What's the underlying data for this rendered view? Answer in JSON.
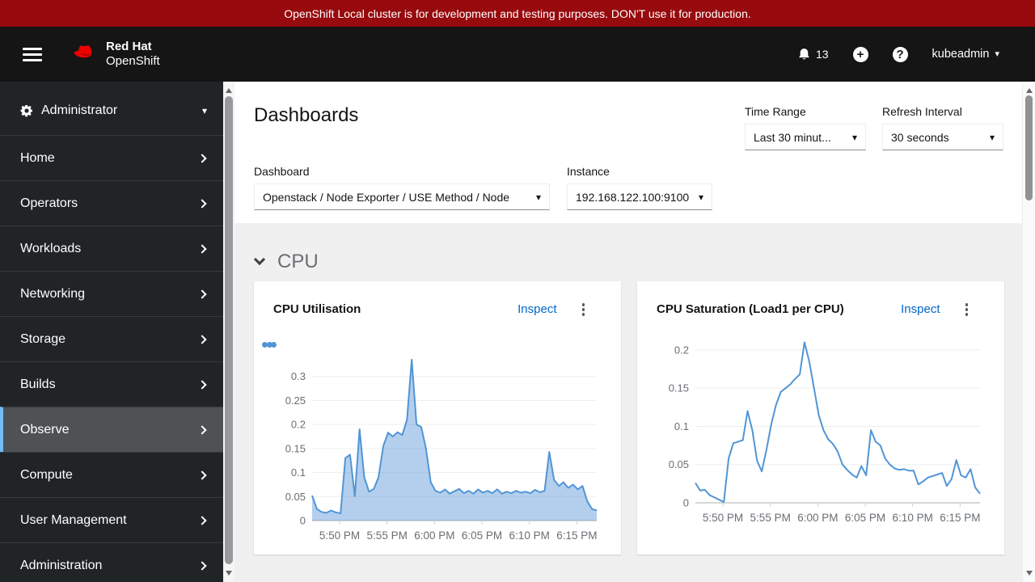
{
  "banner": {
    "text": "OpenShift Local cluster is for development and testing purposes. DON'T use it for production."
  },
  "header": {
    "brand_line1": "Red Hat",
    "brand_line2": "OpenShift",
    "notification_count": "13",
    "username": "kubeadmin"
  },
  "icons": {
    "caret_down": "▾",
    "help": "?",
    "plus": "+"
  },
  "sidebar": {
    "perspective": "Administrator",
    "items": [
      {
        "label": "Home"
      },
      {
        "label": "Operators"
      },
      {
        "label": "Workloads"
      },
      {
        "label": "Networking"
      },
      {
        "label": "Storage"
      },
      {
        "label": "Builds"
      },
      {
        "label": "Observe",
        "selected": true
      },
      {
        "label": "Compute"
      },
      {
        "label": "User Management"
      },
      {
        "label": "Administration"
      }
    ]
  },
  "page": {
    "title": "Dashboards",
    "time_range_label": "Time Range",
    "time_range_value": "Last 30 minut...",
    "refresh_label": "Refresh Interval",
    "refresh_value": "30 seconds",
    "dashboard_label": "Dashboard",
    "dashboard_value": "Openstack / Node Exporter / USE Method / Node",
    "instance_label": "Instance",
    "instance_value": "192.168.122.100:9100",
    "section_title": "CPU"
  },
  "cards": [
    {
      "title": "CPU Utilisation",
      "action": "Inspect"
    },
    {
      "title": "CPU Saturation (Load1 per CPU)",
      "action": "Inspect"
    }
  ],
  "colors": {
    "banner_bg": "#970a0d",
    "masthead_bg": "#151515",
    "sidebar_bg": "#212427",
    "sidebar_selected_bg": "#4f5255",
    "sidebar_active_border": "#73bcf7",
    "link": "#0066cc",
    "chart_line": "#5195d6",
    "content_bg": "#f0f0f0"
  },
  "chart_data": [
    {
      "type": "area",
      "title": "CPU Utilisation",
      "x_interval_min": 0.5,
      "x_range_min": 30,
      "x_ticks": [
        {
          "label": "5:50 PM",
          "t": 2.9
        },
        {
          "label": "5:55 PM",
          "t": 7.9
        },
        {
          "label": "6:00 PM",
          "t": 12.9
        },
        {
          "label": "6:05 PM",
          "t": 17.9
        },
        {
          "label": "6:10 PM",
          "t": 22.9
        },
        {
          "label": "6:15 PM",
          "t": 27.9
        }
      ],
      "y_ticks": [
        0,
        0.05,
        0.1,
        0.15,
        0.2,
        0.25,
        0.3
      ],
      "y_max": 0.35,
      "line_color": "#5195d6",
      "fill_color": "rgba(86,149,214,0.45)",
      "values": [
        0.052,
        0.024,
        0.018,
        0.016,
        0.021,
        0.017,
        0.015,
        0.13,
        0.137,
        0.051,
        0.19,
        0.09,
        0.06,
        0.066,
        0.09,
        0.155,
        0.183,
        0.175,
        0.184,
        0.178,
        0.21,
        0.335,
        0.2,
        0.195,
        0.15,
        0.08,
        0.062,
        0.058,
        0.065,
        0.056,
        0.061,
        0.066,
        0.057,
        0.062,
        0.056,
        0.065,
        0.058,
        0.062,
        0.057,
        0.065,
        0.056,
        0.06,
        0.057,
        0.062,
        0.058,
        0.06,
        0.057,
        0.064,
        0.059,
        0.062,
        0.143,
        0.085,
        0.072,
        0.08,
        0.068,
        0.075,
        0.065,
        0.072,
        0.04,
        0.024,
        0.021
      ]
    },
    {
      "type": "line",
      "title": "CPU Saturation (Load1 per CPU)",
      "x_interval_min": 0.5,
      "x_range_min": 30,
      "x_ticks": [
        {
          "label": "5:50 PM",
          "t": 2.9
        },
        {
          "label": "5:55 PM",
          "t": 7.9
        },
        {
          "label": "6:00 PM",
          "t": 12.9
        },
        {
          "label": "6:05 PM",
          "t": 17.9
        },
        {
          "label": "6:10 PM",
          "t": 22.9
        },
        {
          "label": "6:15 PM",
          "t": 27.9
        }
      ],
      "y_ticks": [
        0,
        0.05,
        0.1,
        0.15,
        0.2
      ],
      "y_max": 0.22,
      "line_color": "#5195d6",
      "fill_color": "none",
      "values": [
        0.026,
        0.016,
        0.017,
        0.01,
        0.007,
        0.004,
        0.001,
        0.058,
        0.078,
        0.08,
        0.082,
        0.12,
        0.095,
        0.055,
        0.041,
        0.07,
        0.103,
        0.128,
        0.145,
        0.15,
        0.155,
        0.162,
        0.168,
        0.21,
        0.185,
        0.15,
        0.115,
        0.095,
        0.083,
        0.077,
        0.067,
        0.05,
        0.043,
        0.037,
        0.033,
        0.048,
        0.036,
        0.095,
        0.08,
        0.075,
        0.058,
        0.05,
        0.045,
        0.043,
        0.044,
        0.042,
        0.042,
        0.024,
        0.028,
        0.033,
        0.035,
        0.037,
        0.039,
        0.022,
        0.031,
        0.056,
        0.036,
        0.033,
        0.044,
        0.02,
        0.012
      ]
    }
  ]
}
